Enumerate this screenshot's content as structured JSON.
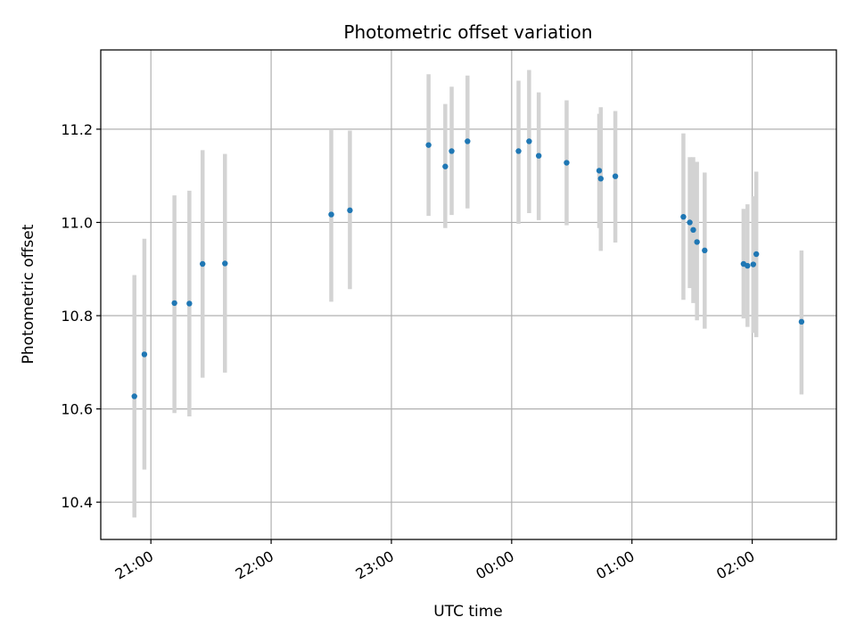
{
  "chart_data": {
    "type": "scatter",
    "title": "Photometric offset variation",
    "xlabel": "UTC time",
    "ylabel": "Photometric offset",
    "x_unit": "UTC hour (24+ = after midnight)",
    "xlim": [
      20.5833,
      26.7
    ],
    "ylim": [
      10.32,
      11.37
    ],
    "x_ticks": [
      {
        "value": 21,
        "label": "21:00"
      },
      {
        "value": 22,
        "label": "22:00"
      },
      {
        "value": 23,
        "label": "23:00"
      },
      {
        "value": 24,
        "label": "00:00"
      },
      {
        "value": 25,
        "label": "01:00"
      },
      {
        "value": 26,
        "label": "02:00"
      }
    ],
    "y_ticks": [
      {
        "value": 10.4,
        "label": "10.4"
      },
      {
        "value": 10.6,
        "label": "10.6"
      },
      {
        "value": 10.8,
        "label": "10.8"
      },
      {
        "value": 11.0,
        "label": "11.0"
      },
      {
        "value": 11.2,
        "label": "11.2"
      }
    ],
    "grid": true,
    "colors": {
      "point": "#1f77b4",
      "errorbar": "#d3d3d3",
      "grid": "#b0b0b0",
      "axes": "#000000"
    },
    "series": [
      {
        "points": [
          {
            "x": 20.863,
            "y": 10.627,
            "err_low": 10.367,
            "err_high": 10.887
          },
          {
            "x": 20.946,
            "y": 10.717,
            "err_low": 10.47,
            "err_high": 10.965
          },
          {
            "x": 21.196,
            "y": 10.827,
            "err_low": 10.591,
            "err_high": 11.058
          },
          {
            "x": 21.32,
            "y": 10.826,
            "err_low": 10.584,
            "err_high": 11.068
          },
          {
            "x": 21.43,
            "y": 10.911,
            "err_low": 10.667,
            "err_high": 11.155
          },
          {
            "x": 21.616,
            "y": 10.912,
            "err_low": 10.678,
            "err_high": 11.147
          },
          {
            "x": 22.5,
            "y": 11.017,
            "err_low": 10.83,
            "err_high": 11.2
          },
          {
            "x": 22.655,
            "y": 11.026,
            "err_low": 10.857,
            "err_high": 11.197
          },
          {
            "x": 23.309,
            "y": 11.166,
            "err_low": 11.014,
            "err_high": 11.318
          },
          {
            "x": 23.448,
            "y": 11.12,
            "err_low": 10.988,
            "err_high": 11.254
          },
          {
            "x": 23.501,
            "y": 11.153,
            "err_low": 11.016,
            "err_high": 11.291
          },
          {
            "x": 23.633,
            "y": 11.174,
            "err_low": 11.03,
            "err_high": 11.315
          },
          {
            "x": 24.057,
            "y": 11.153,
            "err_low": 10.997,
            "err_high": 11.304
          },
          {
            "x": 24.145,
            "y": 11.174,
            "err_low": 11.02,
            "err_high": 11.327
          },
          {
            "x": 24.225,
            "y": 11.143,
            "err_low": 11.005,
            "err_high": 11.279
          },
          {
            "x": 24.457,
            "y": 11.128,
            "err_low": 10.994,
            "err_high": 11.262
          },
          {
            "x": 24.728,
            "y": 11.111,
            "err_low": 10.988,
            "err_high": 11.233
          },
          {
            "x": 24.741,
            "y": 11.094,
            "err_low": 10.939,
            "err_high": 11.247
          },
          {
            "x": 24.862,
            "y": 11.099,
            "err_low": 10.957,
            "err_high": 11.239
          },
          {
            "x": 25.428,
            "y": 11.012,
            "err_low": 10.834,
            "err_high": 11.191
          },
          {
            "x": 25.481,
            "y": 11.0,
            "err_low": 10.859,
            "err_high": 11.14
          },
          {
            "x": 25.51,
            "y": 10.984,
            "err_low": 10.827,
            "err_high": 11.14
          },
          {
            "x": 25.541,
            "y": 10.958,
            "err_low": 10.79,
            "err_high": 11.13
          },
          {
            "x": 25.605,
            "y": 10.94,
            "err_low": 10.772,
            "err_high": 11.107
          },
          {
            "x": 25.928,
            "y": 10.911,
            "err_low": 10.794,
            "err_high": 11.029
          },
          {
            "x": 25.961,
            "y": 10.907,
            "err_low": 10.776,
            "err_high": 11.039
          },
          {
            "x": 26.009,
            "y": 10.91,
            "err_low": 10.763,
            "err_high": 11.056
          },
          {
            "x": 26.034,
            "y": 10.932,
            "err_low": 10.754,
            "err_high": 11.109
          },
          {
            "x": 26.41,
            "y": 10.787,
            "err_low": 10.631,
            "err_high": 10.94
          }
        ]
      }
    ]
  }
}
